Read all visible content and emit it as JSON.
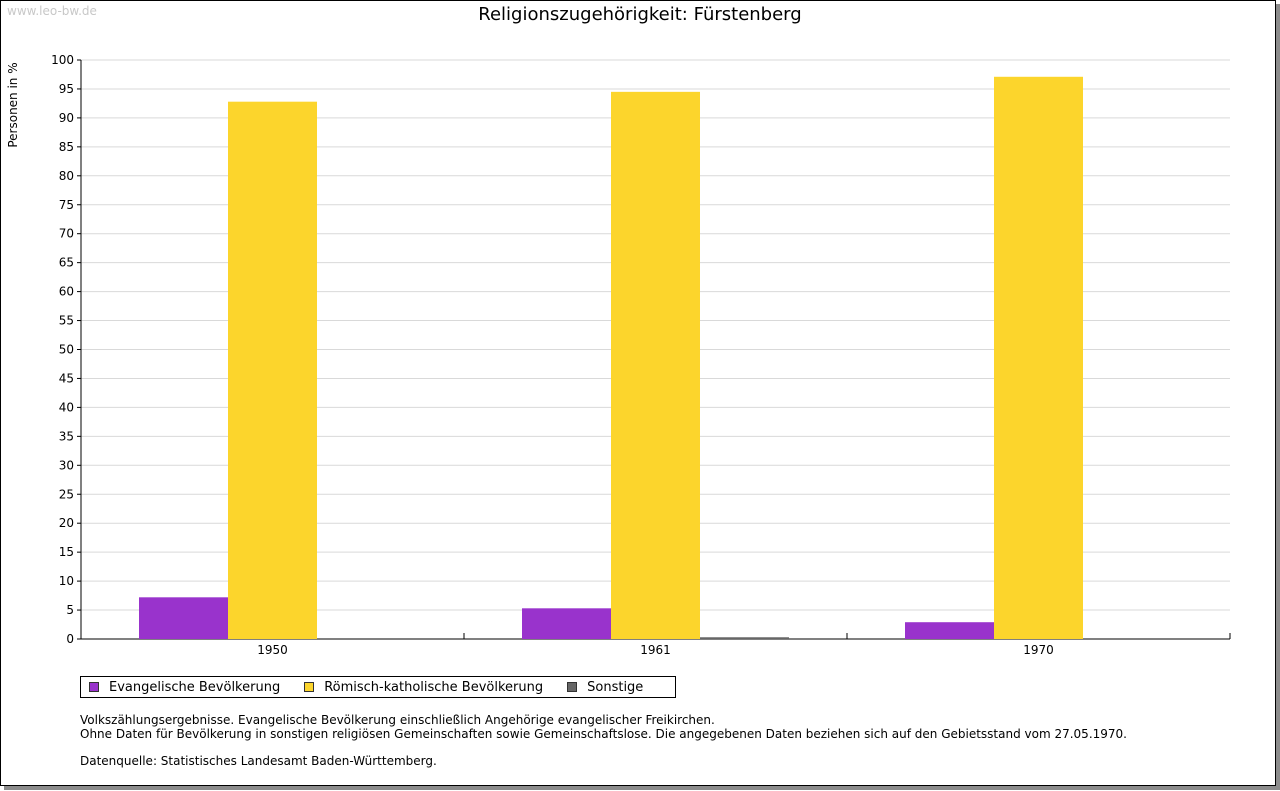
{
  "watermark": "www.leo-bw.de",
  "colors": {
    "evangelisch": "#9933cc",
    "katholisch": "#fcd52c",
    "sonstige": "#666666",
    "grid": "#d9d9d9",
    "axis": "#000000"
  },
  "chart_data": {
    "type": "bar",
    "title": "Religionszugehörigkeit: Fürstenberg",
    "xlabel": "",
    "ylabel": "Personen in %",
    "ylim": [
      0,
      100
    ],
    "yticks": [
      0,
      5,
      10,
      15,
      20,
      25,
      30,
      35,
      40,
      45,
      50,
      55,
      60,
      65,
      70,
      75,
      80,
      85,
      90,
      95,
      100
    ],
    "grid": true,
    "categories": [
      "1950",
      "1961",
      "1970"
    ],
    "series": [
      {
        "name": "Evangelische Bevölkerung",
        "color": "#9933cc",
        "values": [
          7.2,
          5.3,
          2.9
        ]
      },
      {
        "name": "Römisch-katholische Bevölkerung",
        "color": "#fcd52c",
        "values": [
          92.8,
          94.5,
          97.1
        ]
      },
      {
        "name": "Sonstige",
        "color": "#666666",
        "values": [
          0,
          0.3,
          0
        ]
      }
    ],
    "legend_position": "bottom-left"
  },
  "notes": {
    "line1": "Volkszählungsergebnisse. Evangelische Bevölkerung einschließlich Angehörige evangelischer Freikirchen.",
    "line2": "Ohne Daten für Bevölkerung in sonstigen religiösen Gemeinschaften sowie Gemeinschaftslose. Die angegebenen Daten beziehen sich auf den Gebietsstand vom 27.05.1970.",
    "source": "Datenquelle: Statistisches Landesamt Baden-Württemberg."
  }
}
